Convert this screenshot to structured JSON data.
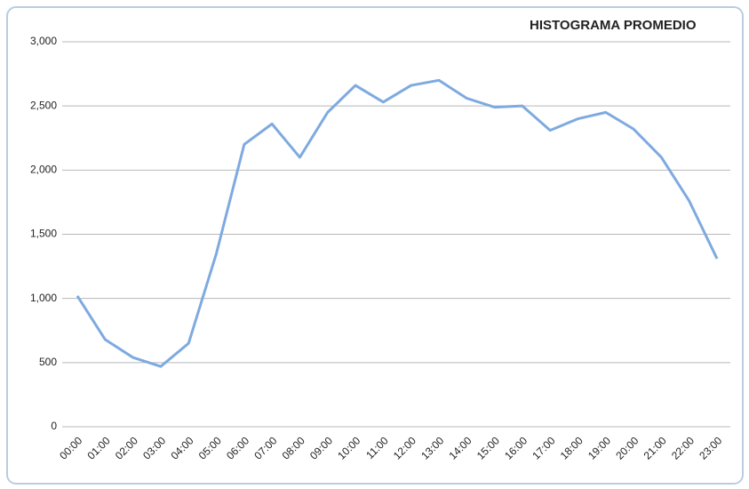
{
  "chart_data": {
    "type": "line",
    "title": "HISTOGRAMA PROMEDIO",
    "categories": [
      "00:00",
      "01:00",
      "02:00",
      "03:00",
      "04:00",
      "05:00",
      "06:00",
      "07:00",
      "08:00",
      "09:00",
      "10:00",
      "11:00",
      "12:00",
      "13:00",
      "14:00",
      "15:00",
      "16:00",
      "17:00",
      "18:00",
      "19:00",
      "20:00",
      "21:00",
      "22:00",
      "23:00"
    ],
    "series": [
      {
        "name": null,
        "color": "#7eaae0",
        "values": [
          1020,
          680,
          540,
          470,
          650,
          1350,
          2200,
          2360,
          2100,
          2450,
          2660,
          2530,
          2660,
          2700,
          2560,
          2490,
          2500,
          2310,
          2400,
          2450,
          2320,
          2100,
          1760,
          1310
        ]
      }
    ],
    "ylim": [
      0,
      3000
    ],
    "yticks": [
      0,
      500,
      {
        "value": 1000,
        "label": "1,000"
      },
      {
        "value": 1500,
        "label": "1,500"
      },
      {
        "value": 2000,
        "label": "2,000"
      },
      {
        "value": 2500,
        "label": "2,500"
      },
      {
        "value": 3000,
        "label": "3,000"
      }
    ],
    "grid": true
  }
}
